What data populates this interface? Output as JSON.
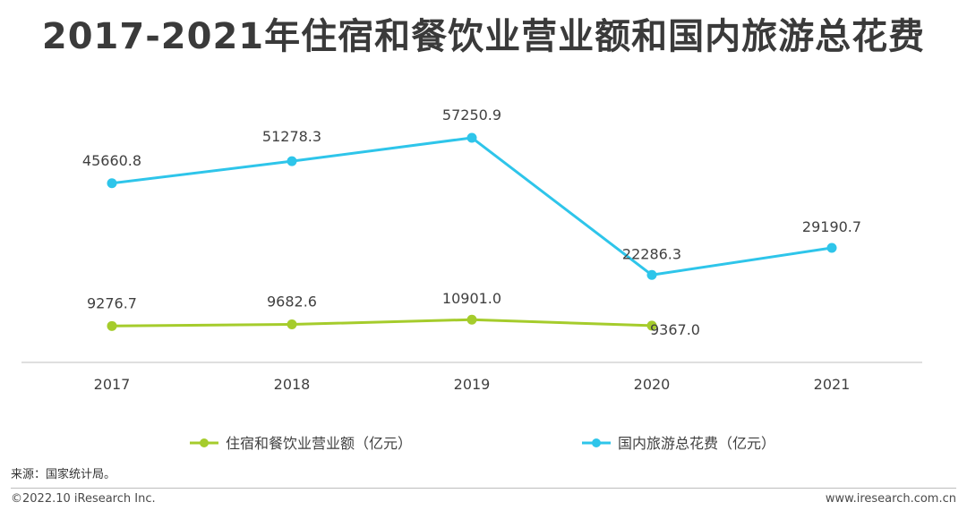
{
  "title": "2017-2021年住宿和餐饮业营业额和国内旅游总花费",
  "source": "来源：国家统计局。",
  "copyright": "©2022.10 iResearch Inc.",
  "website": "www.iresearch.com.cn",
  "colors": {
    "title": "#3a3a3a",
    "axis": "#bfbfbf",
    "text": "#404040"
  },
  "chart_data": {
    "type": "line",
    "title": "2017-2021年住宿和餐饮业营业额和国内旅游总花费",
    "xlabel": "",
    "ylabel": "",
    "categories": [
      "2017",
      "2018",
      "2019",
      "2020",
      "2021"
    ],
    "ylim": [
      0,
      65000
    ],
    "grid": false,
    "legend_position": "bottom",
    "series": [
      {
        "name": "住宿和餐饮业营业额（亿元）",
        "color": "#a5cc2c",
        "values": [
          9276.7,
          9682.6,
          10901.0,
          9367.0,
          null
        ],
        "labels": [
          "9276.7",
          "9682.6",
          "10901.0",
          "9367.0",
          null
        ]
      },
      {
        "name": "国内旅游总花费（亿元）",
        "color": "#2ec5ea",
        "values": [
          45660.8,
          51278.3,
          57250.9,
          22286.3,
          29190.7
        ],
        "labels": [
          "45660.8",
          "51278.3",
          "57250.9",
          "22286.3",
          "29190.7"
        ]
      }
    ]
  }
}
